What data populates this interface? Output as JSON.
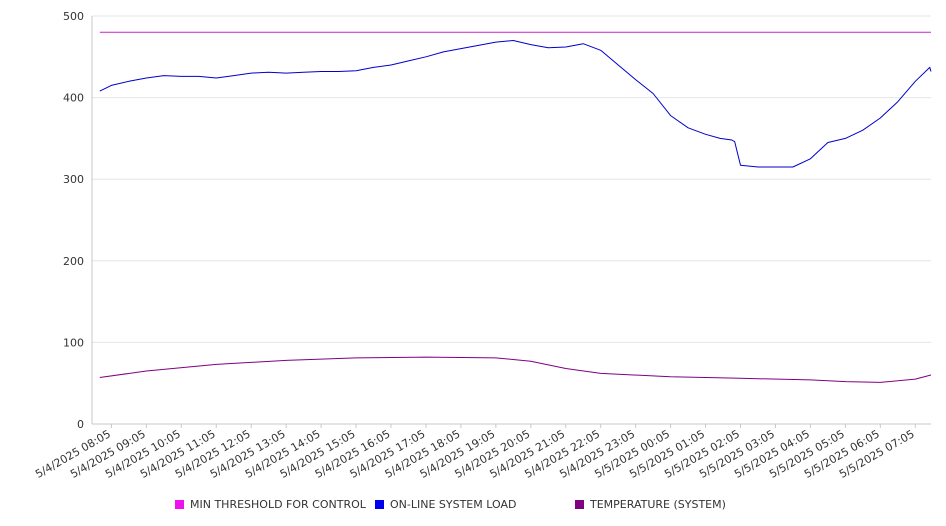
{
  "chart_data": {
    "type": "line",
    "title": "",
    "xlabel": "",
    "ylabel": "",
    "ylim": [
      0,
      500
    ],
    "yticks": [
      0,
      100,
      200,
      300,
      400,
      500
    ],
    "grid": true,
    "legend_position": "bottom",
    "x_tick_labels": [
      "5/4/2025 08:05",
      "5/4/2025 09:05",
      "5/4/2025 10:05",
      "5/4/2025 11:05",
      "5/4/2025 12:05",
      "5/4/2025 13:05",
      "5/4/2025 14:05",
      "5/4/2025 15:05",
      "5/4/2025 16:05",
      "5/4/2025 17:05",
      "5/4/2025 18:05",
      "5/4/2025 19:05",
      "5/4/2025 20:05",
      "5/4/2025 21:05",
      "5/4/2025 22:05",
      "5/4/2025 23:05",
      "5/5/2025 00:05",
      "5/5/2025 01:05",
      "5/5/2025 02:05",
      "5/5/2025 03:05",
      "5/5/2025 04:05",
      "5/5/2025 05:05",
      "5/5/2025 06:05",
      "5/5/2025 07:05"
    ],
    "series": [
      {
        "name": "MIN THRESHOLD FOR CONTROL",
        "color": "#cc22cc",
        "x": [
          "5/4/2025 07:45",
          "5/5/2025 07:45"
        ],
        "values": [
          480,
          480
        ]
      },
      {
        "name": "ON-LINE SYSTEM LOAD",
        "color": "#0000cc",
        "x": [
          "5/4/2025 07:45",
          "5/4/2025 08:05",
          "5/4/2025 08:35",
          "5/4/2025 09:05",
          "5/4/2025 09:35",
          "5/4/2025 10:05",
          "5/4/2025 10:35",
          "5/4/2025 11:05",
          "5/4/2025 11:35",
          "5/4/2025 12:05",
          "5/4/2025 12:35",
          "5/4/2025 13:05",
          "5/4/2025 13:35",
          "5/4/2025 14:05",
          "5/4/2025 14:35",
          "5/4/2025 15:05",
          "5/4/2025 15:35",
          "5/4/2025 16:05",
          "5/4/2025 16:35",
          "5/4/2025 17:05",
          "5/4/2025 17:35",
          "5/4/2025 18:05",
          "5/4/2025 18:35",
          "5/4/2025 19:05",
          "5/4/2025 19:35",
          "5/4/2025 20:05",
          "5/4/2025 20:35",
          "5/4/2025 21:05",
          "5/4/2025 21:35",
          "5/4/2025 22:05",
          "5/4/2025 22:35",
          "5/4/2025 23:05",
          "5/4/2025 23:35",
          "5/5/2025 00:05",
          "5/5/2025 00:35",
          "5/5/2025 01:05",
          "5/5/2025 01:30",
          "5/5/2025 01:50",
          "5/5/2025 01:55",
          "5/5/2025 02:05",
          "5/5/2025 02:35",
          "5/5/2025 03:05",
          "5/5/2025 03:35",
          "5/5/2025 04:05",
          "5/5/2025 04:35",
          "5/5/2025 05:05",
          "5/5/2025 05:35",
          "5/5/2025 06:05",
          "5/5/2025 06:35",
          "5/5/2025 07:05",
          "5/5/2025 07:30",
          "5/5/2025 07:45"
        ],
        "values": [
          408,
          415,
          420,
          424,
          427,
          426,
          426,
          424,
          427,
          430,
          431,
          430,
          431,
          432,
          432,
          433,
          437,
          440,
          445,
          450,
          456,
          460,
          464,
          468,
          470,
          465,
          461,
          462,
          466,
          458,
          440,
          422,
          405,
          378,
          363,
          355,
          350,
          348,
          346,
          317,
          315,
          315,
          315,
          325,
          345,
          350,
          360,
          375,
          395,
          420,
          437,
          432
        ]
      },
      {
        "name": "TEMPERATURE (SYSTEM)",
        "color": "#800080",
        "x": [
          "5/4/2025 07:45",
          "5/4/2025 09:05",
          "5/4/2025 11:05",
          "5/4/2025 13:05",
          "5/4/2025 15:05",
          "5/4/2025 17:05",
          "5/4/2025 19:05",
          "5/4/2025 20:05",
          "5/4/2025 21:05",
          "5/4/2025 22:05",
          "5/5/2025 00:05",
          "5/5/2025 02:05",
          "5/5/2025 04:05",
          "5/5/2025 05:05",
          "5/5/2025 06:05",
          "5/5/2025 07:05",
          "5/5/2025 07:45"
        ],
        "values": [
          57,
          65,
          73,
          78,
          81,
          82,
          81,
          77,
          68,
          62,
          58,
          56,
          54,
          52,
          51,
          55,
          60
        ]
      }
    ]
  }
}
